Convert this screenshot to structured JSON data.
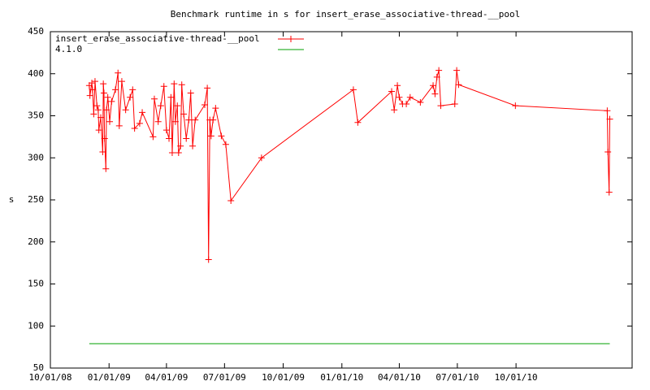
{
  "chart_data": {
    "type": "line",
    "title": "Benchmark runtime in s for insert_erase_associative-thread-__pool",
    "ylabel": "s",
    "xlim": [
      "2008-10-01",
      "2011-04-01"
    ],
    "xticks": [
      {
        "value": "2008-10-01",
        "label": "10/01/08"
      },
      {
        "value": "2009-01-01",
        "label": "01/01/09"
      },
      {
        "value": "2009-04-01",
        "label": "04/01/09"
      },
      {
        "value": "2009-07-01",
        "label": "07/01/09"
      },
      {
        "value": "2009-10-01",
        "label": "10/01/09"
      },
      {
        "value": "2010-01-01",
        "label": "01/01/10"
      },
      {
        "value": "2010-04-01",
        "label": "04/01/10"
      },
      {
        "value": "2010-07-01",
        "label": "07/01/10"
      },
      {
        "value": "2010-10-01",
        "label": "10/01/10"
      }
    ],
    "ylim": [
      50,
      450
    ],
    "yticks": [
      50,
      100,
      150,
      200,
      250,
      300,
      350,
      400,
      450
    ],
    "legend": "top-left",
    "series": [
      {
        "name": "insert_erase_associative-thread-__pool",
        "color": "#ff0000",
        "markers": true,
        "x": [
          "2008-12-01",
          "2008-12-02",
          "2008-12-05",
          "2008-12-06",
          "2008-12-08",
          "2008-12-10",
          "2008-12-13",
          "2008-12-15",
          "2008-12-16",
          "2008-12-19",
          "2008-12-22",
          "2008-12-23",
          "2008-12-24",
          "2008-12-25",
          "2008-12-27",
          "2008-12-28",
          "2008-12-30",
          "2009-01-02",
          "2009-01-05",
          "2009-01-11",
          "2009-01-15",
          "2009-01-17",
          "2009-01-21",
          "2009-01-27",
          "2009-02-03",
          "2009-02-07",
          "2009-02-10",
          "2009-02-18",
          "2009-02-22",
          "2009-03-11",
          "2009-03-13",
          "2009-03-19",
          "2009-03-23",
          "2009-03-28",
          "2009-04-01",
          "2009-04-05",
          "2009-04-08",
          "2009-04-10",
          "2009-04-13",
          "2009-04-15",
          "2009-04-18",
          "2009-04-20",
          "2009-04-23",
          "2009-04-25",
          "2009-04-28",
          "2009-05-02",
          "2009-05-06",
          "2009-05-09",
          "2009-05-12",
          "2009-05-16",
          "2009-05-31",
          "2009-06-04",
          "2009-06-06",
          "2009-06-08",
          "2009-06-10",
          "2009-06-13",
          "2009-06-17",
          "2009-06-26",
          "2009-07-03",
          "2009-07-11",
          "2009-08-28",
          "2010-01-19",
          "2010-01-26",
          "2010-03-20",
          "2010-03-24",
          "2010-03-29",
          "2010-04-01",
          "2010-04-06",
          "2010-04-12",
          "2010-04-18",
          "2010-05-04",
          "2010-05-24",
          "2010-05-27",
          "2010-05-30",
          "2010-06-02",
          "2010-06-05",
          "2010-06-27",
          "2010-06-30",
          "2010-07-03",
          "2010-09-30",
          "2011-02-21",
          "2011-02-22",
          "2011-02-24",
          "2011-02-25"
        ],
        "values": [
          386,
          374,
          389,
          381,
          352,
          391,
          362,
          357,
          333,
          348,
          307,
          388,
          377,
          323,
          287,
          357,
          372,
          343,
          367,
          381,
          401,
          338,
          391,
          357,
          372,
          381,
          335,
          341,
          354,
          325,
          370,
          343,
          362,
          385,
          333,
          323,
          372,
          306,
          388,
          343,
          362,
          306,
          314,
          387,
          352,
          323,
          345,
          377,
          314,
          345,
          363,
          383,
          179,
          345,
          326,
          345,
          359,
          326,
          316,
          249,
          300,
          381,
          342,
          379,
          357,
          386,
          372,
          364,
          364,
          372,
          366,
          386,
          376,
          396,
          404,
          362,
          364,
          404,
          387,
          362,
          356,
          307,
          259,
          346
        ]
      },
      {
        "name": "4.1.0",
        "color": "#00a000",
        "markers": false,
        "x": [
          "2008-12-01",
          "2011-02-25"
        ],
        "values": [
          79,
          79
        ]
      }
    ]
  }
}
